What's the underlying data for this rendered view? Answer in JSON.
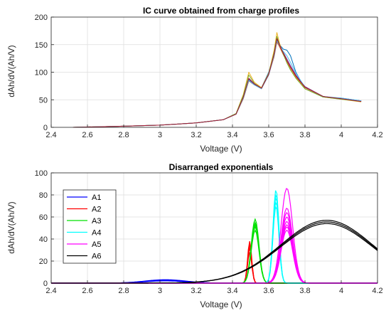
{
  "chart_data": [
    {
      "type": "line",
      "title": "IC curve obtained from charge profiles",
      "xlabel": "Voltage (V)",
      "ylabel": "dAh/dV(Ah/V)",
      "xlim": [
        2.4,
        4.2
      ],
      "ylim": [
        0,
        200
      ],
      "xticks": [
        2.4,
        2.6,
        2.8,
        3,
        3.2,
        3.4,
        3.6,
        3.8,
        4,
        4.2
      ],
      "xtick_labels": [
        "2.4",
        "2.6",
        "2.8",
        "3",
        "3.2",
        "3.4",
        "3.6",
        "3.8",
        "4",
        "4.2"
      ],
      "yticks": [
        0,
        50,
        100,
        150,
        200
      ],
      "ytick_labels": [
        "0",
        "50",
        "100",
        "150",
        "200"
      ],
      "grid": true,
      "legend": "none",
      "series": [
        {
          "color": "#0072bd",
          "x": [
            2.52,
            2.8,
            3.0,
            3.2,
            3.35,
            3.42,
            3.46,
            3.49,
            3.52,
            3.56,
            3.6,
            3.63,
            3.645,
            3.66,
            3.68,
            3.7,
            3.72,
            3.75,
            3.8,
            3.9,
            4.0,
            4.11
          ],
          "y": [
            0,
            2,
            4,
            8,
            14,
            25,
            55,
            86,
            78,
            72,
            100,
            135,
            160,
            150,
            142,
            140,
            130,
            100,
            70,
            55,
            53,
            48
          ]
        },
        {
          "color": "#d95319",
          "x": [
            2.52,
            2.8,
            3.0,
            3.2,
            3.35,
            3.42,
            3.46,
            3.49,
            3.52,
            3.56,
            3.6,
            3.63,
            3.645,
            3.66,
            3.68,
            3.7,
            3.72,
            3.75,
            3.8,
            3.9,
            4.0,
            4.11
          ],
          "y": [
            0,
            2,
            4,
            8,
            14,
            24,
            52,
            84,
            77,
            70,
            96,
            128,
            155,
            146,
            132,
            120,
            108,
            92,
            72,
            56,
            52,
            47
          ]
        },
        {
          "color": "#edb120",
          "x": [
            2.52,
            2.8,
            3.0,
            3.2,
            3.35,
            3.42,
            3.46,
            3.49,
            3.52,
            3.56,
            3.6,
            3.63,
            3.645,
            3.66,
            3.68,
            3.7,
            3.72,
            3.75,
            3.8,
            3.9,
            4.0,
            4.11
          ],
          "y": [
            0,
            2,
            4,
            8,
            14,
            25,
            60,
            100,
            82,
            72,
            98,
            140,
            172,
            152,
            134,
            118,
            105,
            90,
            70,
            55,
            51,
            46
          ]
        },
        {
          "color": "#7e2f8e",
          "x": [
            2.52,
            2.8,
            3.0,
            3.2,
            3.35,
            3.42,
            3.46,
            3.49,
            3.52,
            3.56,
            3.6,
            3.63,
            3.645,
            3.66,
            3.68,
            3.7,
            3.72,
            3.75,
            3.8,
            3.9,
            4.0,
            4.11
          ],
          "y": [
            0,
            2,
            4,
            8,
            14,
            24,
            54,
            88,
            78,
            71,
            97,
            132,
            158,
            149,
            136,
            124,
            112,
            95,
            74,
            56,
            52,
            48
          ]
        },
        {
          "color": "#77ac30",
          "x": [
            2.52,
            2.8,
            3.0,
            3.2,
            3.35,
            3.42,
            3.46,
            3.49,
            3.52,
            3.56,
            3.6,
            3.63,
            3.645,
            3.66,
            3.68,
            3.7,
            3.72,
            3.75,
            3.8,
            3.9,
            4.0,
            4.11
          ],
          "y": [
            0,
            2,
            4,
            8,
            14,
            25,
            58,
            95,
            80,
            71,
            97,
            136,
            165,
            150,
            133,
            117,
            104,
            89,
            70,
            55,
            51,
            47
          ]
        },
        {
          "color": "#4dbeee",
          "x": [
            2.52,
            2.8,
            3.0,
            3.2,
            3.35,
            3.42,
            3.46,
            3.49,
            3.52,
            3.56,
            3.6,
            3.63,
            3.645,
            3.66,
            3.68,
            3.7,
            3.72,
            3.75,
            3.8,
            3.9,
            4.0,
            4.11
          ],
          "y": [
            0,
            2,
            4,
            8,
            14,
            24,
            53,
            85,
            77,
            70,
            95,
            130,
            157,
            148,
            138,
            130,
            118,
            98,
            73,
            56,
            53,
            48
          ]
        },
        {
          "color": "#a2142f",
          "x": [
            2.52,
            2.8,
            3.0,
            3.2,
            3.35,
            3.42,
            3.46,
            3.49,
            3.52,
            3.56,
            3.6,
            3.63,
            3.645,
            3.66,
            3.68,
            3.7,
            3.72,
            3.75,
            3.8,
            3.9,
            4.0,
            4.11
          ],
          "y": [
            0,
            2,
            4,
            8,
            14,
            24,
            55,
            89,
            79,
            71,
            96,
            133,
            161,
            149,
            135,
            121,
            109,
            93,
            73,
            56,
            52,
            47
          ]
        }
      ]
    },
    {
      "type": "line",
      "title": "Disarranged exponentials",
      "xlabel": "Voltage (V)",
      "ylabel": "dAh/dV(Ah/V)",
      "xlim": [
        2.4,
        4.2
      ],
      "ylim": [
        0,
        100
      ],
      "xticks": [
        2.4,
        2.6,
        2.8,
        3,
        3.2,
        3.4,
        3.6,
        3.8,
        4,
        4.2
      ],
      "xtick_labels": [
        "2.4",
        "2.6",
        "2.8",
        "3",
        "3.2",
        "3.4",
        "3.6",
        "3.8",
        "4",
        "4.2"
      ],
      "yticks": [
        0,
        20,
        40,
        60,
        80,
        100
      ],
      "ytick_labels": [
        "0",
        "20",
        "40",
        "60",
        "80",
        "100"
      ],
      "grid": true,
      "legend": "upper-left",
      "series": [
        {
          "name": "A1",
          "color": "#0000ff",
          "center": 3.03,
          "width": 0.16,
          "heights": [
            2.0,
            2.4,
            2.8,
            3.1
          ]
        },
        {
          "name": "A2",
          "color": "#ff0000",
          "center": 3.495,
          "width": 0.016,
          "heights": [
            28,
            32,
            35,
            38
          ]
        },
        {
          "name": "A3",
          "color": "#00e000",
          "center": 3.525,
          "width": 0.03,
          "heights": [
            48,
            51,
            53,
            55,
            58
          ]
        },
        {
          "name": "A4",
          "color": "#00ffff",
          "center": 3.64,
          "width": 0.023,
          "heights": [
            70,
            74,
            78,
            81,
            85
          ]
        },
        {
          "name": "A5",
          "color": "#ff00ff",
          "center": 3.7,
          "width": 0.045,
          "heights": [
            48,
            51,
            53,
            56,
            60,
            64,
            68,
            86
          ]
        },
        {
          "name": "A6",
          "color": "#000000",
          "center": 3.92,
          "width": 0.36,
          "heights": [
            54,
            55.5,
            57
          ]
        }
      ]
    }
  ]
}
